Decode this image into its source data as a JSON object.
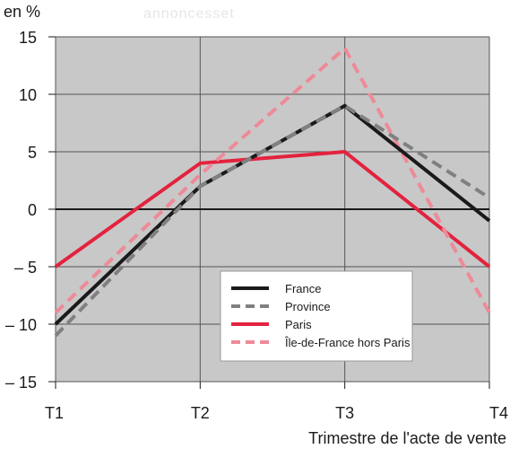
{
  "chart_data": {
    "type": "line",
    "faded_header": "annoncesset",
    "ylabel": "en %",
    "xlabel": "Trimestre de l'acte de vente",
    "categories": [
      "T1",
      "T2",
      "T3",
      "T4"
    ],
    "ylim": [
      -15,
      15
    ],
    "yticks": [
      "15",
      "10",
      "5",
      "0",
      "– 5",
      "– 10",
      "– 15"
    ],
    "ytick_values": [
      15,
      10,
      5,
      0,
      -5,
      -10,
      -15
    ],
    "grid": true,
    "legend_position": "bottom-right",
    "series": [
      {
        "name": "France",
        "values": [
          -10,
          2,
          9,
          -1
        ],
        "color": "#1a1a1a",
        "dashed": false
      },
      {
        "name": "Province",
        "values": [
          -11,
          2,
          9,
          1
        ],
        "color": "#808080",
        "dashed": true
      },
      {
        "name": "Paris",
        "values": [
          -5,
          4,
          5,
          -5
        ],
        "color": "#e3233e",
        "dashed": false
      },
      {
        "name": "Île-de-France hors Paris",
        "values": [
          -9,
          3,
          14,
          -9
        ],
        "color": "#ee8a98",
        "dashed": true
      }
    ]
  }
}
